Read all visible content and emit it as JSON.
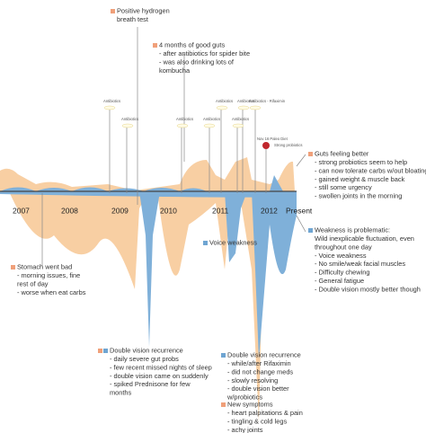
{
  "years": [
    "2007",
    "2008",
    "2009",
    "2010",
    "2011",
    "2012",
    "Present"
  ],
  "voice_label": "Voice weakness",
  "event_labels": [
    "Antibiotics",
    "Antibiotics",
    "Antibiotics",
    "Antibiotics",
    "Antibiotics",
    "Antibiotics",
    "Antibiotics",
    "Antibiotics - Rifaximin",
    "Nov 16 Paleo Diet",
    "Strong probiotics"
  ],
  "annotations": [
    {
      "title": "Positive hydrogen",
      "lines": [
        "breath test"
      ]
    },
    {
      "title": "4 months of good guts",
      "lines": [
        "- after antibiotics for spider bite",
        "- was also drinking lots of",
        "kombucha"
      ]
    },
    {
      "title": "Guts feeling better",
      "lines": [
        "- strong probiotics seem to help",
        "- can now tolerate carbs w/out bloating",
        "- gained weight & muscle back",
        "- still some urgency",
        "- swollen joints in the morning"
      ]
    },
    {
      "title": "Weakness is problematic:",
      "lines": [
        "Wild inexplicable fluctuation, even",
        "throughout one day",
        "- Voice weakness",
        "- No smile/weak facial muscles",
        "- Difficulty chewing",
        "- General fatigue",
        "- Double vision mostly better though"
      ]
    },
    {
      "title": "Stomach went bad",
      "lines": [
        "- morning issues, fine",
        "rest of day",
        "- worse when eat carbs"
      ]
    },
    {
      "title": "Double vision recurrence",
      "lines": [
        "- daily severe gut probs",
        "- few recent missed nights of sleep",
        "- double vision came on suddenly",
        "- spiked Prednisone for few",
        "months"
      ]
    },
    {
      "title": "Double vision recurrence",
      "lines": [
        "- while/after Rifaximin",
        "- did not change meds",
        "- slowly resolving",
        "- double vision better",
        "w/probiotics"
      ]
    },
    {
      "title": "New symptoms",
      "lines": [
        "- heart palpitations & pain",
        "- tingling & cold legs",
        "- achy joints"
      ]
    }
  ]
}
